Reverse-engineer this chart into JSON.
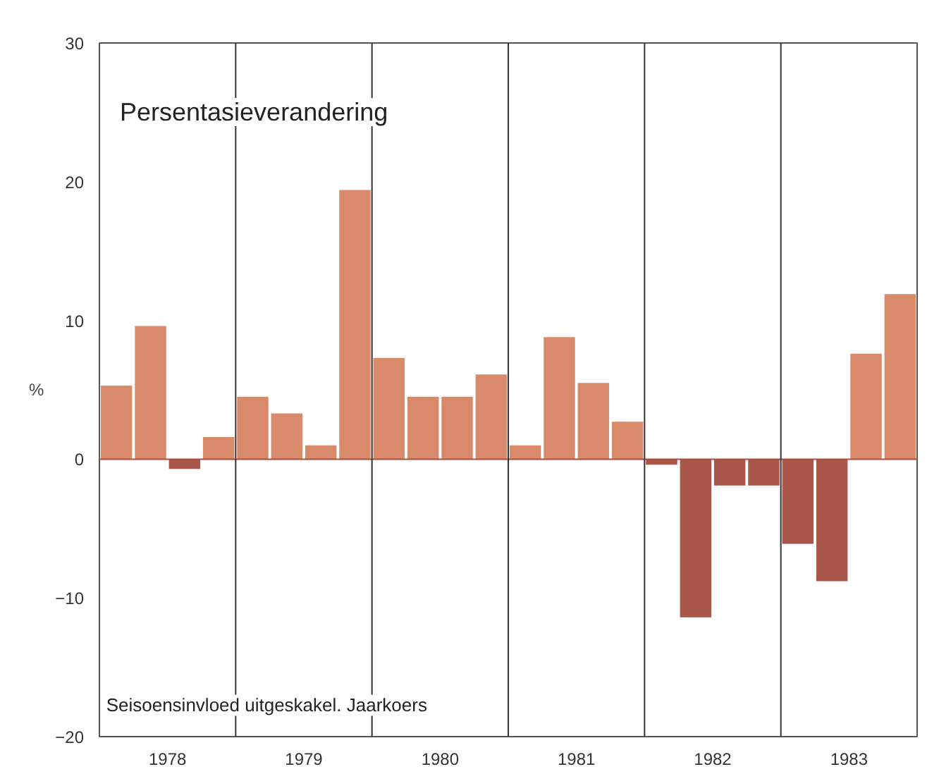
{
  "chart_data": {
    "type": "bar",
    "ylabel": "%",
    "x": [
      1978.125,
      1978.375,
      1978.625,
      1978.875,
      1979.125,
      1979.375,
      1979.625,
      1979.875,
      1980.125,
      1980.375,
      1980.625,
      1980.875,
      1981.125,
      1981.375,
      1981.625,
      1981.875,
      1982.125,
      1982.375,
      1982.625,
      1982.875,
      1983.125,
      1983.375,
      1983.625,
      1983.875
    ],
    "values": [
      5.3,
      9.6,
      -0.7,
      1.6,
      4.5,
      3.3,
      1.0,
      19.4,
      7.3,
      4.5,
      4.5,
      6.1,
      1.0,
      8.8,
      5.5,
      2.7,
      -0.4,
      -11.4,
      -1.9,
      -1.9,
      -6.1,
      -8.8,
      7.6,
      11.9
    ],
    "colors": [
      "#d98a6a",
      "#d98a6a",
      "#a9574a",
      "#d98a6a",
      "#d98a6a",
      "#d98a6a",
      "#d98a6a",
      "#d98a6a",
      "#d98a6a",
      "#d98a6a",
      "#d98a6a",
      "#d98a6a",
      "#d98a6a",
      "#d98a6a",
      "#d98a6a",
      "#d98a6a",
      "#a9574a",
      "#a9574a",
      "#a9574a",
      "#a9574a",
      "#a9574a",
      "#a9574a",
      "#d98a6a",
      "#d98a6a"
    ],
    "xlim": [
      1978,
      1984
    ],
    "xticks": [
      {
        "value": 1978.5,
        "label": "1978"
      },
      {
        "value": 1979.5,
        "label": "1979"
      },
      {
        "value": 1980.5,
        "label": "1980"
      },
      {
        "value": 1981.5,
        "label": "1981"
      },
      {
        "value": 1982.5,
        "label": "1982"
      },
      {
        "value": 1983.5,
        "label": "1983"
      }
    ],
    "ylim": [
      -20,
      30
    ],
    "yticks": [
      -20,
      -10,
      0,
      10,
      20,
      30
    ],
    "ref_lines": [
      {
        "axis": "y",
        "value": 0,
        "color": "#b04a3a"
      },
      {
        "axis": "x",
        "value": 1979,
        "color": "#333333"
      },
      {
        "axis": "x",
        "value": 1980,
        "color": "#333333"
      },
      {
        "axis": "x",
        "value": 1981,
        "color": "#333333"
      },
      {
        "axis": "x",
        "value": 1982,
        "color": "#333333"
      },
      {
        "axis": "x",
        "value": 1983,
        "color": "#333333"
      }
    ],
    "annotations": [
      "Persentasieverandering",
      "Seisoensinvloed uitgeskakel. Jaarkoers"
    ],
    "grid": false
  }
}
